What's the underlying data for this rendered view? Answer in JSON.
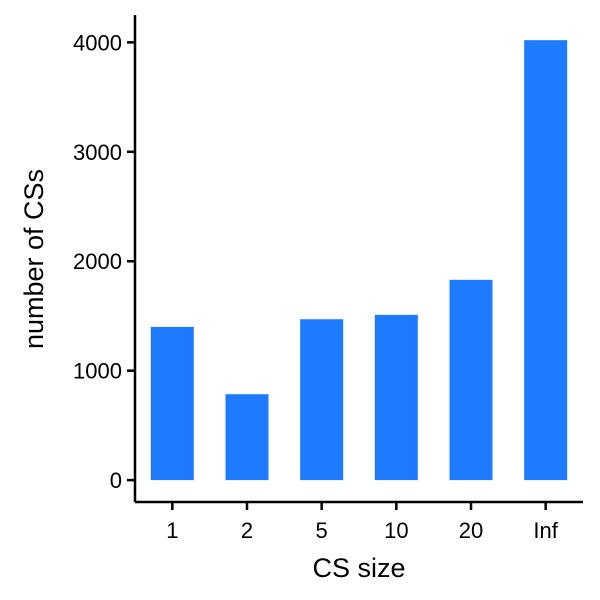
{
  "chart_data": {
    "type": "bar",
    "title": "",
    "xlabel": "CS size",
    "ylabel": "number of CSs",
    "categories": [
      "1",
      "2",
      "5",
      "10",
      "20",
      "Inf"
    ],
    "values": [
      1400,
      785,
      1470,
      1510,
      1830,
      4020
    ],
    "ylim": [
      -200,
      4250
    ],
    "yticks": [
      0,
      1000,
      2000,
      3000,
      4000
    ],
    "grid": false,
    "legend": "none",
    "bar_color": "#1e7bff",
    "axis_color": "#000000"
  }
}
